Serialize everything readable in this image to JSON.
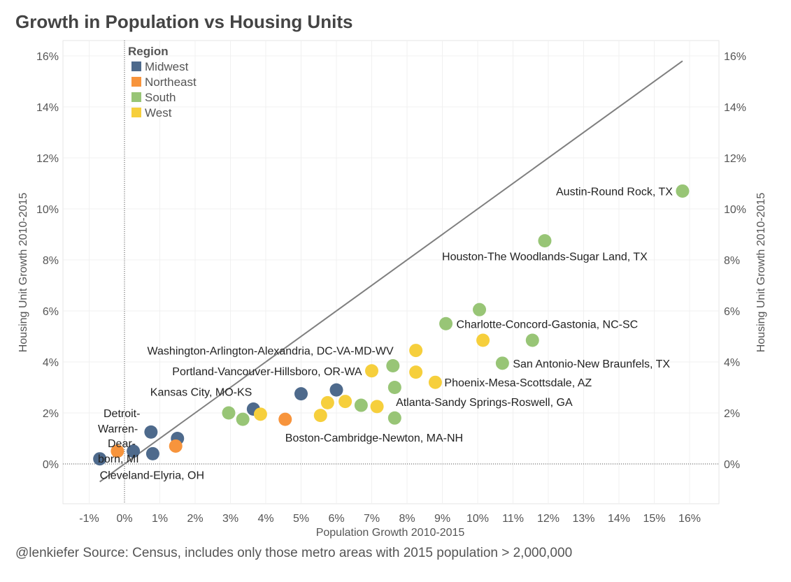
{
  "chart_data": {
    "type": "scatter",
    "title": "Growth in Population vs Housing Units",
    "xlabel": "Population Growth 2010-2015",
    "ylabel": "Housing Unit Growth 2010-2015",
    "xlim": [
      -2,
      17
    ],
    "ylim": [
      -1.5,
      16.5
    ],
    "x_ticks": [
      -1,
      0,
      1,
      2,
      3,
      4,
      5,
      6,
      7,
      8,
      9,
      10,
      11,
      12,
      13,
      14,
      15,
      16
    ],
    "x_tick_labels": [
      "-1%",
      "0%",
      "1%",
      "2%",
      "3%",
      "4%",
      "5%",
      "6%",
      "7%",
      "8%",
      "9%",
      "10%",
      "11%",
      "12%",
      "13%",
      "14%",
      "15%",
      "16%"
    ],
    "y_ticks": [
      0,
      2,
      4,
      6,
      8,
      10,
      12,
      14,
      16
    ],
    "y_tick_labels": [
      "0%",
      "2%",
      "4%",
      "6%",
      "8%",
      "10%",
      "12%",
      "14%",
      "16%"
    ],
    "grid": true,
    "reference_line": {
      "x": [
        -0.7,
        15.8
      ],
      "y": [
        -0.7,
        15.8
      ]
    },
    "legend": {
      "title": "Region",
      "position": "top-left",
      "entries": [
        {
          "name": "Midwest",
          "color": "#4e6a8c"
        },
        {
          "name": "Northeast",
          "color": "#f7943c"
        },
        {
          "name": "South",
          "color": "#98c576"
        },
        {
          "name": "West",
          "color": "#f6cf3c"
        }
      ]
    },
    "points": [
      {
        "x": 15.8,
        "y": 10.7,
        "region": "South",
        "label": "Austin-Round Rock, TX"
      },
      {
        "x": 11.9,
        "y": 8.75,
        "region": "South",
        "label": "Houston-The Woodlands-Sugar Land, TX"
      },
      {
        "x": 10.05,
        "y": 6.05,
        "region": "South",
        "label": ""
      },
      {
        "x": 9.1,
        "y": 5.5,
        "region": "South",
        "label": "Charlotte-Concord-Gastonia, NC-SC"
      },
      {
        "x": 10.15,
        "y": 4.85,
        "region": "West",
        "label": ""
      },
      {
        "x": 11.55,
        "y": 4.85,
        "region": "South",
        "label": ""
      },
      {
        "x": 10.7,
        "y": 3.95,
        "region": "South",
        "label": "San Antonio-New Braunfels, TX"
      },
      {
        "x": 8.25,
        "y": 4.45,
        "region": "West",
        "label": "Washington-Arlington-Alexandria, DC-VA-MD-WV"
      },
      {
        "x": 7.6,
        "y": 3.85,
        "region": "South",
        "label": ""
      },
      {
        "x": 7.0,
        "y": 3.65,
        "region": "West",
        "label": "Portland-Vancouver-Hillsboro, OR-WA"
      },
      {
        "x": 8.25,
        "y": 3.6,
        "region": "West",
        "label": ""
      },
      {
        "x": 8.8,
        "y": 3.2,
        "region": "West",
        "label": "Phoenix-Mesa-Scottsdale, AZ"
      },
      {
        "x": 7.65,
        "y": 3.0,
        "region": "South",
        "label": ""
      },
      {
        "x": 6.0,
        "y": 2.9,
        "region": "Midwest",
        "label": ""
      },
      {
        "x": 5.0,
        "y": 2.75,
        "region": "Midwest",
        "label": ""
      },
      {
        "x": 6.25,
        "y": 2.45,
        "region": "West",
        "label": ""
      },
      {
        "x": 5.75,
        "y": 2.4,
        "region": "West",
        "label": ""
      },
      {
        "x": 6.7,
        "y": 2.3,
        "region": "South",
        "label": ""
      },
      {
        "x": 7.15,
        "y": 2.25,
        "region": "West",
        "label": "Atlanta-Sandy Springs-Roswell, GA"
      },
      {
        "x": 3.65,
        "y": 2.15,
        "region": "Midwest",
        "label": "Kansas City, MO-KS"
      },
      {
        "x": 2.95,
        "y": 2.0,
        "region": "South",
        "label": ""
      },
      {
        "x": 3.85,
        "y": 1.95,
        "region": "West",
        "label": ""
      },
      {
        "x": 5.55,
        "y": 1.9,
        "region": "West",
        "label": ""
      },
      {
        "x": 7.65,
        "y": 1.8,
        "region": "South",
        "label": ""
      },
      {
        "x": 4.55,
        "y": 1.75,
        "region": "Northeast",
        "label": "Boston-Cambridge-Newton, MA-NH"
      },
      {
        "x": 3.35,
        "y": 1.75,
        "region": "South",
        "label": ""
      },
      {
        "x": 0.75,
        "y": 1.25,
        "region": "Midwest",
        "label": "Detroit-Warren-Dearborn, MI"
      },
      {
        "x": 1.5,
        "y": 1.0,
        "region": "Midwest",
        "label": ""
      },
      {
        "x": 1.45,
        "y": 0.7,
        "region": "Northeast",
        "label": ""
      },
      {
        "x": 0.8,
        "y": 0.4,
        "region": "Midwest",
        "label": ""
      },
      {
        "x": 0.25,
        "y": 0.5,
        "region": "Midwest",
        "label": ""
      },
      {
        "x": -0.2,
        "y": 0.5,
        "region": "Northeast",
        "label": ""
      },
      {
        "x": -0.7,
        "y": 0.2,
        "region": "Midwest",
        "label": "Cleveland-Elyria, OH"
      }
    ]
  },
  "footer": {
    "source": "@lenkiefer Source: Census, includes only those metro areas with 2015 population > 2,000,000"
  }
}
